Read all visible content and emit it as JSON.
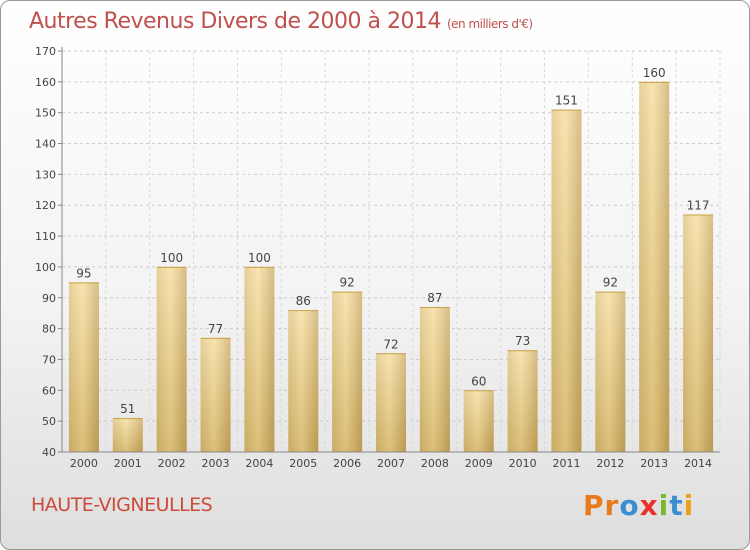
{
  "header": {
    "title": "Autres Revenus Divers de 2000 à 2014",
    "unit": "(en milliers d'€)"
  },
  "footer": {
    "commune": "HAUTE-VIGNEULLES",
    "logo": "Proxiti",
    "logo_colors": [
      "#e87a1e",
      "#e87a1e",
      "#3b8fd1",
      "#e8322b",
      "#7cb82f",
      "#3b8fd1",
      "#e8a21e"
    ]
  },
  "chart_data": {
    "type": "bar",
    "title": "Autres Revenus Divers de 2000 à 2014",
    "unit": "(en milliers d'€)",
    "categories": [
      "2000",
      "2001",
      "2002",
      "2003",
      "2004",
      "2005",
      "2006",
      "2007",
      "2008",
      "2009",
      "2010",
      "2011",
      "2012",
      "2013",
      "2014"
    ],
    "values": [
      95,
      51,
      100,
      77,
      100,
      86,
      92,
      72,
      87,
      60,
      73,
      151,
      92,
      160,
      117
    ],
    "ylim": [
      40,
      170
    ],
    "yticks": [
      40,
      50,
      60,
      70,
      80,
      90,
      100,
      110,
      120,
      130,
      140,
      150,
      160,
      170
    ],
    "grid": true,
    "bar_color": "#e9cd82"
  }
}
